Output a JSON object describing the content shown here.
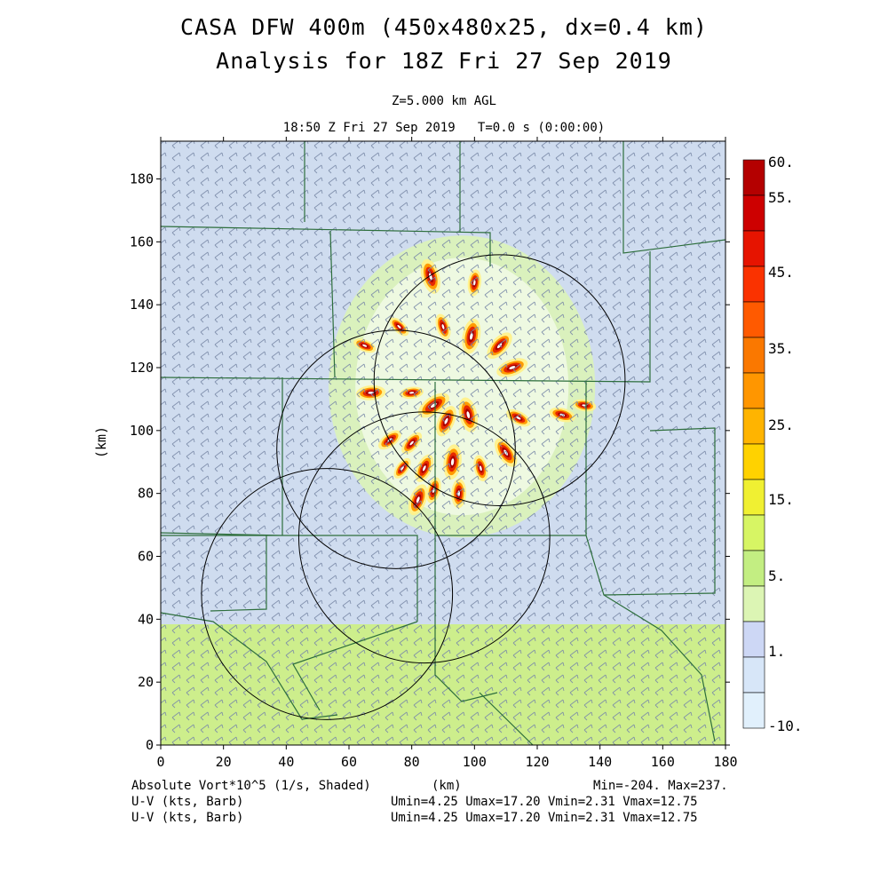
{
  "header": {
    "title_line1": "CASA DFW 400m (450x480x25, dx=0.4 km)",
    "title_line2": "Analysis for 18Z Fri 27 Sep 2019",
    "level": "Z=5.000 km AGL",
    "time": "18:50 Z Fri 27 Sep 2019   T=0.0 s (0:00:00)"
  },
  "footer": {
    "field_label": "Absolute Vort*10^5 (1/s, Shaded)",
    "xunit": "(km)",
    "minmax": "Min=-204. Max=237.",
    "barb_label_1": "U-V (kts, Barb)",
    "barb_stats_1": "Umin=4.25 Umax=17.20 Vmin=2.31 Vmax=12.75",
    "barb_label_2": "U-V (kts, Barb)",
    "barb_stats_2": "Umin=4.25 Umax=17.20 Vmin=2.31 Vmax=12.75"
  },
  "colors": {
    "shade_low": "#cfdcef",
    "shade_green": "#cdee8c",
    "boundary": "#2d6e3c",
    "range_ring": "#000000"
  },
  "chart_data": {
    "type": "heatmap",
    "ylabel": "(km)",
    "xlabel": "(km)",
    "xlim": [
      0,
      180
    ],
    "ylim": [
      0,
      192
    ],
    "xticks": [
      "0",
      "20",
      "40",
      "60",
      "80",
      "100",
      "120",
      "140",
      "160",
      "180"
    ],
    "yticks": [
      "0",
      "20",
      "40",
      "60",
      "80",
      "100",
      "120",
      "140",
      "160",
      "180"
    ],
    "colorbar": {
      "labels": [
        "60.",
        "55.",
        "45.",
        "35.",
        "25.",
        "15.",
        "5.",
        "1.",
        "-10."
      ],
      "colors": [
        "#b40000",
        "#cd0000",
        "#e61400",
        "#fa3200",
        "#ff5a00",
        "#fa7800",
        "#ff9600",
        "#ffb400",
        "#ffd200",
        "#f0f032",
        "#d7f564",
        "#c3ee82",
        "#dcf5b4",
        "#cdd7f5",
        "#d7e6f8",
        "#e1f0fc"
      ]
    },
    "range_rings": [
      {
        "name": "",
        "center": [
          108,
          116
        ],
        "radius_km": 40
      },
      {
        "name": "",
        "center": [
          75,
          94
        ],
        "radius_km": 38
      },
      {
        "name": "",
        "center": [
          84,
          66
        ],
        "radius_km": 40
      },
      {
        "name": "",
        "center": [
          53,
          48
        ],
        "radius_km": 40
      }
    ],
    "vorticity_cores": [
      {
        "x": 86,
        "y": 149,
        "value": 60
      },
      {
        "x": 100,
        "y": 147,
        "value": 45
      },
      {
        "x": 76,
        "y": 133,
        "value": 40
      },
      {
        "x": 90,
        "y": 133,
        "value": 45
      },
      {
        "x": 99,
        "y": 130,
        "value": 60
      },
      {
        "x": 108,
        "y": 127,
        "value": 55
      },
      {
        "x": 65,
        "y": 127,
        "value": 40
      },
      {
        "x": 112,
        "y": 120,
        "value": 55
      },
      {
        "x": 67,
        "y": 112,
        "value": 50
      },
      {
        "x": 80,
        "y": 112,
        "value": 40
      },
      {
        "x": 87,
        "y": 108,
        "value": 60
      },
      {
        "x": 98,
        "y": 105,
        "value": 60
      },
      {
        "x": 91,
        "y": 103,
        "value": 55
      },
      {
        "x": 114,
        "y": 104,
        "value": 45
      },
      {
        "x": 128,
        "y": 105,
        "value": 45
      },
      {
        "x": 135,
        "y": 108,
        "value": 40
      },
      {
        "x": 73,
        "y": 97,
        "value": 45
      },
      {
        "x": 80,
        "y": 96,
        "value": 45
      },
      {
        "x": 110,
        "y": 93,
        "value": 55
      },
      {
        "x": 84,
        "y": 88,
        "value": 50
      },
      {
        "x": 93,
        "y": 90,
        "value": 60
      },
      {
        "x": 102,
        "y": 88,
        "value": 45
      },
      {
        "x": 77,
        "y": 88,
        "value": 40
      },
      {
        "x": 87,
        "y": 81,
        "value": 45
      },
      {
        "x": 82,
        "y": 78,
        "value": 55
      },
      {
        "x": 95,
        "y": 80,
        "value": 50
      }
    ]
  }
}
